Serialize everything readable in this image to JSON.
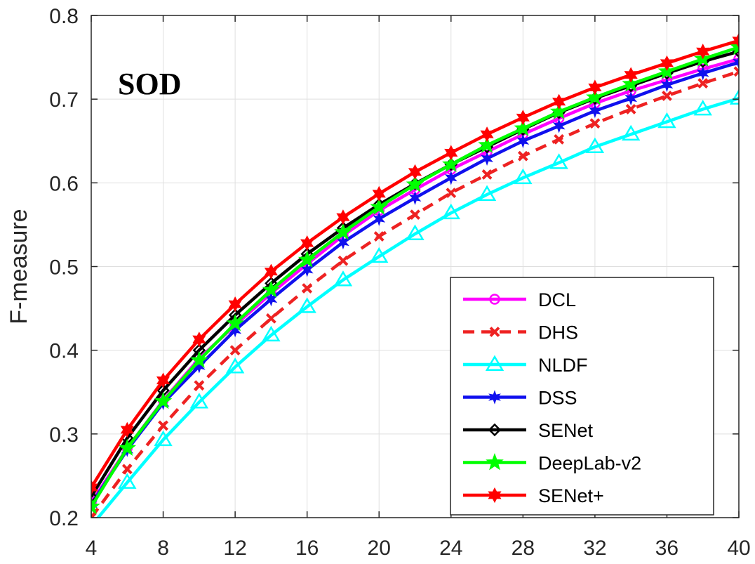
{
  "chart_data": {
    "type": "line",
    "title": "SOD",
    "xlabel": "",
    "ylabel": "F-measure",
    "xlim": [
      4,
      40
    ],
    "ylim": [
      0.2,
      0.8
    ],
    "xticks": [
      4,
      8,
      12,
      16,
      20,
      24,
      28,
      32,
      36,
      40
    ],
    "yticks": [
      0.2,
      0.3,
      0.4,
      0.5,
      0.6,
      0.7,
      0.8
    ],
    "xtick_labels": [
      "4",
      "8",
      "12",
      "16",
      "20",
      "24",
      "28",
      "32",
      "36",
      "40"
    ],
    "ytick_labels": [
      "0.2",
      "0.3",
      "0.4",
      "0.5",
      "0.6",
      "0.7",
      "0.8"
    ],
    "grid": true,
    "legend_position": "bottom-right",
    "x": [
      4,
      6,
      8,
      10,
      12,
      14,
      16,
      18,
      20,
      22,
      24,
      26,
      28,
      30,
      32,
      34,
      36,
      38,
      40
    ],
    "series": [
      {
        "name": "DCL",
        "color": "#ff00ff",
        "style": "solid",
        "marker": "circle",
        "values": [
          0.218,
          0.283,
          0.34,
          0.39,
          0.43,
          0.468,
          0.503,
          0.537,
          0.567,
          0.592,
          0.616,
          0.637,
          0.658,
          0.677,
          0.695,
          0.71,
          0.723,
          0.736,
          0.748
        ]
      },
      {
        "name": "DHS",
        "color": "#ee2222",
        "style": "dashed",
        "marker": "x",
        "values": [
          0.2,
          0.258,
          0.31,
          0.358,
          0.4,
          0.438,
          0.474,
          0.507,
          0.536,
          0.562,
          0.588,
          0.61,
          0.632,
          0.652,
          0.671,
          0.688,
          0.704,
          0.719,
          0.733
        ]
      },
      {
        "name": "NLDF",
        "color": "#00ffff",
        "style": "solid",
        "marker": "triangle",
        "values": [
          0.19,
          0.242,
          0.293,
          0.338,
          0.38,
          0.418,
          0.452,
          0.484,
          0.512,
          0.539,
          0.564,
          0.586,
          0.606,
          0.624,
          0.643,
          0.658,
          0.673,
          0.688,
          0.701
        ]
      },
      {
        "name": "DSS",
        "color": "#1010ee",
        "style": "solid",
        "marker": "star6",
        "values": [
          0.216,
          0.281,
          0.337,
          0.381,
          0.424,
          0.461,
          0.496,
          0.529,
          0.557,
          0.582,
          0.606,
          0.629,
          0.65,
          0.668,
          0.686,
          0.701,
          0.717,
          0.731,
          0.744
        ]
      },
      {
        "name": "SENet",
        "color": "#000000",
        "style": "solid",
        "marker": "diamond",
        "values": [
          0.225,
          0.295,
          0.352,
          0.4,
          0.442,
          0.48,
          0.515,
          0.546,
          0.574,
          0.599,
          0.622,
          0.643,
          0.664,
          0.684,
          0.701,
          0.716,
          0.731,
          0.745,
          0.757
        ]
      },
      {
        "name": "DeepLab-v2",
        "color": "#00ff00",
        "style": "solid",
        "marker": "star5",
        "values": [
          0.213,
          0.283,
          0.339,
          0.388,
          0.432,
          0.472,
          0.508,
          0.541,
          0.571,
          0.598,
          0.622,
          0.645,
          0.665,
          0.685,
          0.702,
          0.718,
          0.733,
          0.748,
          0.762
        ]
      },
      {
        "name": "SENet+",
        "color": "#ff0000",
        "style": "solid",
        "marker": "hexagram",
        "values": [
          0.236,
          0.305,
          0.364,
          0.413,
          0.455,
          0.494,
          0.528,
          0.559,
          0.587,
          0.613,
          0.636,
          0.658,
          0.678,
          0.697,
          0.714,
          0.729,
          0.743,
          0.757,
          0.77
        ]
      }
    ]
  }
}
